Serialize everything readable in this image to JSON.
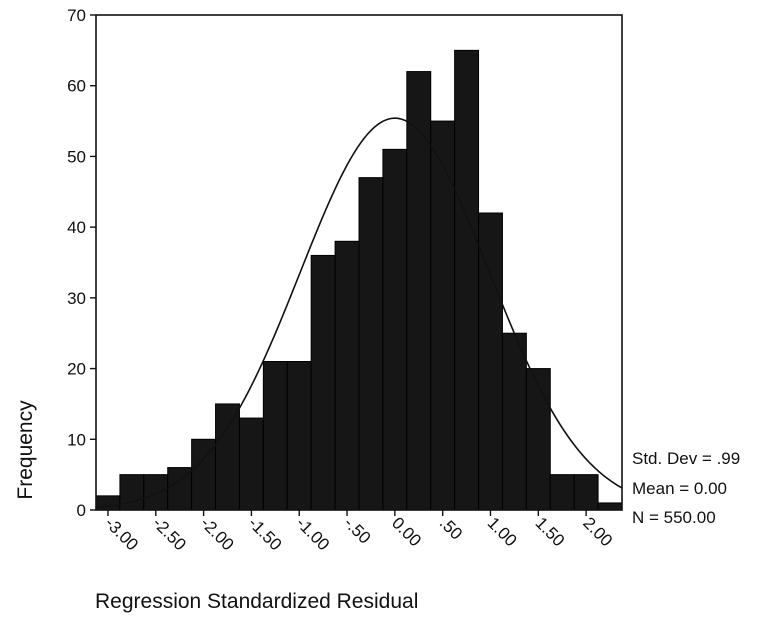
{
  "chart_data": {
    "type": "bar",
    "subtype": "histogram",
    "xlabel": "Regression Standardized Residual",
    "ylabel": "Frequency",
    "ylim": [
      0,
      70
    ],
    "yticks": [
      0,
      10,
      20,
      30,
      40,
      50,
      60,
      70
    ],
    "xlim": [
      -3.125,
      2.375
    ],
    "xticks": [
      "-3.00",
      "-2.50",
      "-2.00",
      "-1.50",
      "-1.00",
      "-.50",
      "0.00",
      ".50",
      "1.00",
      "1.50",
      "2.00"
    ],
    "bin_width": 0.25,
    "bins": [
      {
        "x": -3.0,
        "value": 2
      },
      {
        "x": -2.75,
        "value": 5
      },
      {
        "x": -2.5,
        "value": 5
      },
      {
        "x": -2.25,
        "value": 6
      },
      {
        "x": -2.0,
        "value": 10
      },
      {
        "x": -1.75,
        "value": 15
      },
      {
        "x": -1.5,
        "value": 13
      },
      {
        "x": -1.25,
        "value": 21
      },
      {
        "x": -1.0,
        "value": 21
      },
      {
        "x": -0.75,
        "value": 36
      },
      {
        "x": -0.5,
        "value": 38
      },
      {
        "x": -0.25,
        "value": 47
      },
      {
        "x": 0.0,
        "value": 51
      },
      {
        "x": 0.25,
        "value": 62
      },
      {
        "x": 0.5,
        "value": 55
      },
      {
        "x": 0.75,
        "value": 65
      },
      {
        "x": 1.0,
        "value": 42
      },
      {
        "x": 1.25,
        "value": 25
      },
      {
        "x": 1.5,
        "value": 20
      },
      {
        "x": 1.75,
        "value": 5
      },
      {
        "x": 2.0,
        "value": 5
      },
      {
        "x": 2.25,
        "value": 1
      }
    ],
    "normal_curve": {
      "mean": 0.0,
      "std_dev": 0.99,
      "n": 550
    },
    "stats": [
      "Std. Dev = .99",
      "Mean = 0.00",
      "N = 550.00"
    ],
    "bar_color": "#161616",
    "curve_color": "#111111"
  }
}
